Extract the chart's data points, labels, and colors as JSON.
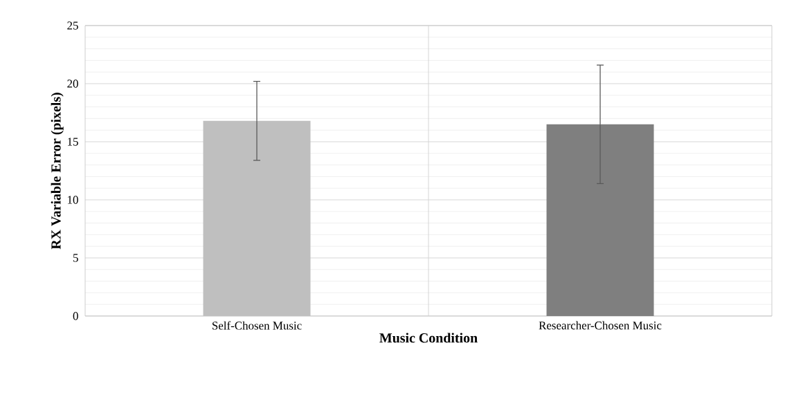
{
  "chart_data": {
    "type": "bar",
    "xlabel": "Music Condition",
    "ylabel": "RX Variable Error (pixels)",
    "categories": [
      "Self-Chosen Music",
      "Researcher-Chosen Music"
    ],
    "values": [
      16.8,
      16.5
    ],
    "errors": [
      3.4,
      5.1
    ],
    "colors": [
      "#bfbfbf",
      "#7f7f7f"
    ],
    "ylim": [
      0,
      25
    ],
    "yticks": [
      0,
      5,
      10,
      15,
      20,
      25
    ],
    "grid": true
  }
}
